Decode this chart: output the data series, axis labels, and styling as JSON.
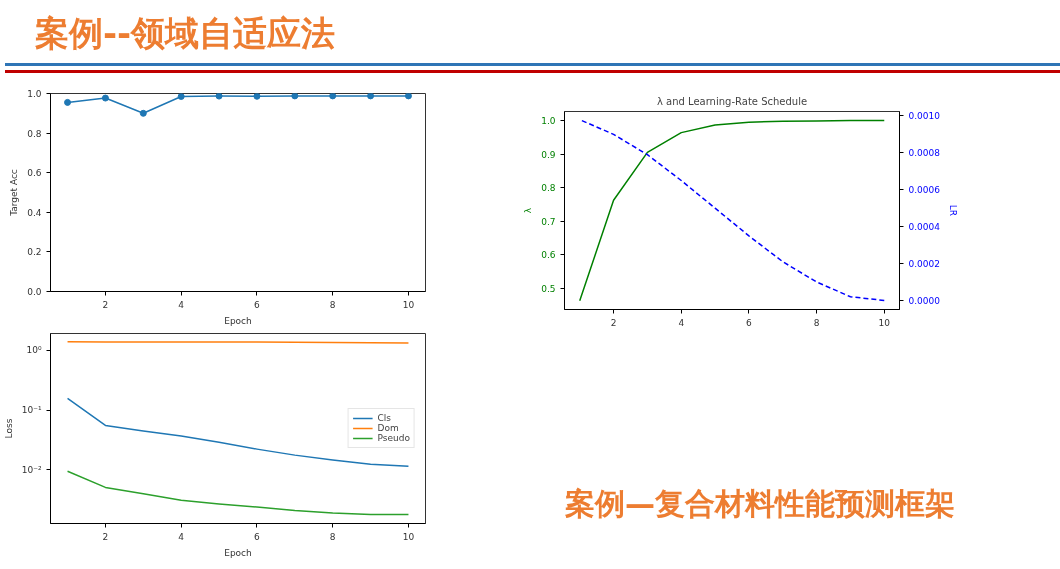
{
  "chart_data": [
    {
      "type": "line",
      "annotations": [
        "案例--领域自适应法"
      ],
      "xlabel": "Epoch",
      "ylabel": "Target Acc",
      "x": [
        1,
        2,
        3,
        4,
        5,
        6,
        7,
        8,
        9,
        10
      ],
      "series": [
        {
          "color": "#1f77b4",
          "values": [
            0.955,
            0.977,
            0.9,
            0.985,
            0.987,
            0.986,
            0.988,
            0.988,
            0.988,
            0.988
          ]
        }
      ],
      "marker": "circle",
      "xlim": [
        0.55,
        10.45
      ],
      "xticks": [
        2,
        4,
        6,
        8,
        10
      ],
      "ylim": [
        0,
        1.0
      ],
      "yticks": [
        {
          "value": 0,
          "label": "0.0"
        },
        {
          "value": 0.2,
          "label": "0.2"
        },
        {
          "value": 0.4,
          "label": "0.4"
        },
        {
          "value": 0.6,
          "label": "0.6"
        },
        {
          "value": 0.8,
          "label": "0.8"
        },
        {
          "value": 1.0,
          "label": "1.0"
        }
      ],
      "grid": false,
      "legend": false
    },
    {
      "type": "line",
      "title": "λ and Learning-Rate Schedule",
      "ylabel": "λ",
      "y2label": "LR",
      "x": [
        1,
        2,
        3,
        4,
        5,
        6,
        7,
        8,
        9,
        10
      ],
      "series": [
        {
          "color": "#008000",
          "line_style": "solid",
          "values": [
            0.462,
            0.762,
            0.905,
            0.964,
            0.987,
            0.995,
            0.998,
            0.999,
            1.0,
            1.0
          ]
        },
        {
          "color": "#0000ff",
          "line_style": "dashed",
          "axis": "y2",
          "values": [
            0.00098,
            0.0009,
            0.00079,
            0.00065,
            0.0005,
            0.00035,
            0.00021,
            0.0001,
            2e-05,
            0.0
          ]
        }
      ],
      "xlim": [
        0.55,
        10.45
      ],
      "xticks": [
        2,
        4,
        6,
        8,
        10
      ],
      "ylim": [
        0.436,
        1.027
      ],
      "yticks": [
        {
          "value": 0.5,
          "label": "0.5"
        },
        {
          "value": 0.6,
          "label": "0.6"
        },
        {
          "value": 0.7,
          "label": "0.7"
        },
        {
          "value": 0.8,
          "label": "0.8"
        },
        {
          "value": 0.9,
          "label": "0.9"
        },
        {
          "value": 1.0,
          "label": "1.0"
        }
      ],
      "y2lim": [
        -4.9e-05,
        0.001024
      ],
      "y2ticks": [
        {
          "value": 0,
          "label": "0.0000"
        },
        {
          "value": 0.0002,
          "label": "0.0002"
        },
        {
          "value": 0.0004,
          "label": "0.0004"
        },
        {
          "value": 0.0006,
          "label": "0.0006"
        },
        {
          "value": 0.0008,
          "label": "0.0008"
        },
        {
          "value": 0.001,
          "label": "0.0010"
        }
      ],
      "grid": false,
      "legend": false
    },
    {
      "type": "line",
      "annotations": [
        "案例—复合材料性能预测框架"
      ],
      "xlabel": "Epoch",
      "ylabel": "Loss",
      "x": [
        1,
        2,
        3,
        4,
        5,
        6,
        7,
        8,
        9,
        10
      ],
      "log": "y",
      "series": [
        {
          "name": "Cls",
          "color": "#1f77b4",
          "values": [
            0.157,
            0.0556,
            0.045,
            0.037,
            0.029,
            0.0223,
            0.0177,
            0.0147,
            0.0125,
            0.0115
          ]
        },
        {
          "name": "Dom",
          "color": "#ff7f0e",
          "values": [
            1.4,
            1.39,
            1.39,
            1.39,
            1.39,
            1.38,
            1.37,
            1.36,
            1.35,
            1.33
          ]
        },
        {
          "name": "Pseudo",
          "color": "#2ca02c",
          "values": [
            0.0095,
            0.0051,
            0.004,
            0.0031,
            0.0027,
            0.0024,
            0.0021,
            0.0019,
            0.0018,
            0.0018
          ]
        }
      ],
      "xlim": [
        0.55,
        10.45
      ],
      "xticks": [
        2,
        4,
        6,
        8,
        10
      ],
      "ylim": [
        0.00127,
        1.92
      ],
      "yticks": [
        {
          "value": 0.01,
          "label": "10⁻²"
        },
        {
          "value": 0.1,
          "label": "10⁻¹"
        },
        {
          "value": 1,
          "label": "10⁰"
        }
      ],
      "grid": false,
      "legend": "center right"
    }
  ]
}
